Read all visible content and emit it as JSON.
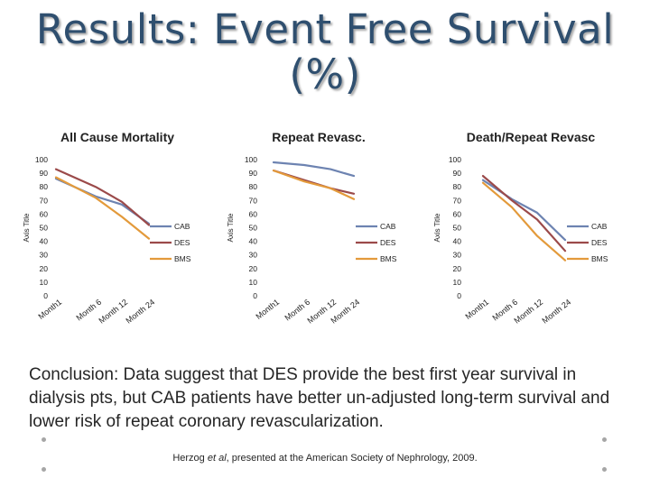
{
  "title_line1": "Results: Event Free Survival",
  "title_line2": "(%)",
  "conclusion": "Conclusion: Data suggest that DES provide the best first year survival in dialysis pts, but CAB patients have better un-adjusted long-term survival and lower risk of repeat coronary revascularization.",
  "citation": {
    "before": "Herzog ",
    "italic": "et al",
    "after": ", presented at the American Society of Nephrology, 2009."
  },
  "colors": {
    "CAB": "#6d83b1",
    "DES": "#9b4a4a",
    "BMS": "#e39a3b"
  },
  "chart_data": [
    {
      "type": "line",
      "title": "All Cause Mortality",
      "ylabel": "Axis Title",
      "categories": [
        "Month1",
        "Month 6",
        "Month 12",
        "Month 24"
      ],
      "yticks": [
        "0",
        "10",
        "20",
        "30",
        "40",
        "50",
        "60",
        "70",
        "80",
        "90",
        "100"
      ],
      "ylim": [
        0,
        100
      ],
      "series": [
        {
          "name": "CAB",
          "values": [
            86,
            73,
            67,
            53
          ]
        },
        {
          "name": "DES",
          "values": [
            93,
            80,
            69,
            52
          ]
        },
        {
          "name": "BMS",
          "values": [
            87,
            72,
            58,
            42
          ]
        }
      ]
    },
    {
      "type": "line",
      "title": "Repeat Revasc.",
      "ylabel": "Axis Title",
      "categories": [
        "Month1",
        "Month 6",
        "Month 12",
        "Month 24"
      ],
      "yticks": [
        "0",
        "10",
        "20",
        "30",
        "40",
        "50",
        "60",
        "70",
        "80",
        "90",
        "100"
      ],
      "ylim": [
        0,
        100
      ],
      "series": [
        {
          "name": "CAB",
          "values": [
            98,
            96,
            93,
            88
          ]
        },
        {
          "name": "DES",
          "values": [
            92,
            85,
            79,
            75
          ]
        },
        {
          "name": "BMS",
          "values": [
            92,
            84,
            79,
            71
          ]
        }
      ]
    },
    {
      "type": "line",
      "title": "Death/Repeat Revasc",
      "ylabel": "Axis Title",
      "categories": [
        "Month1",
        "Month 6",
        "Month 12",
        "Month 24"
      ],
      "yticks": [
        "0",
        "10",
        "20",
        "30",
        "40",
        "50",
        "60",
        "70",
        "80",
        "90",
        "100"
      ],
      "ylim": [
        0,
        100
      ],
      "series": [
        {
          "name": "CAB",
          "values": [
            85,
            71,
            61,
            41
          ]
        },
        {
          "name": "DES",
          "values": [
            88,
            70,
            56,
            33
          ]
        },
        {
          "name": "BMS",
          "values": [
            83,
            65,
            44,
            26
          ]
        }
      ]
    }
  ]
}
